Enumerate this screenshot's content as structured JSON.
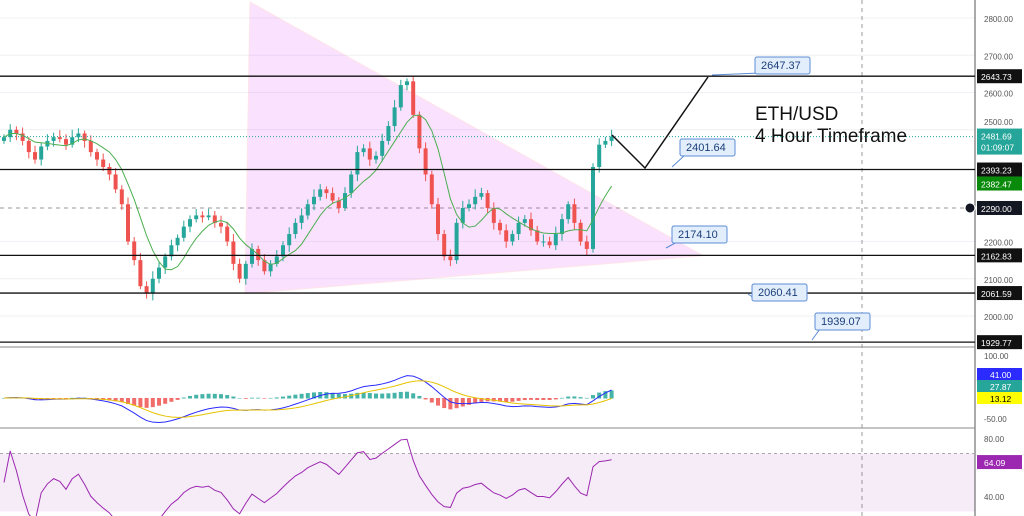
{
  "chart_data": {
    "type": "candlestick",
    "title": "ETH/USD",
    "subtitle": "4 Hour Timeframe",
    "ylim": [
      1920,
      2850
    ],
    "y_ticks": [
      2800,
      2700,
      2600,
      2500,
      2200,
      2100,
      2000
    ],
    "closes": [
      2480,
      2500,
      2490,
      2470,
      2440,
      2420,
      2455,
      2470,
      2480,
      2475,
      2460,
      2480,
      2490,
      2470,
      2440,
      2420,
      2400,
      2380,
      2340,
      2300,
      2200,
      2150,
      2080,
      2060,
      2100,
      2130,
      2160,
      2190,
      2210,
      2240,
      2260,
      2270,
      2265,
      2270,
      2250,
      2240,
      2200,
      2140,
      2100,
      2140,
      2180,
      2150,
      2120,
      2140,
      2160,
      2190,
      2220,
      2250,
      2270,
      2300,
      2320,
      2340,
      2330,
      2310,
      2290,
      2330,
      2380,
      2440,
      2450,
      2420,
      2430,
      2470,
      2510,
      2560,
      2620,
      2630,
      2540,
      2450,
      2380,
      2300,
      2220,
      2160,
      2150,
      2250,
      2290,
      2300,
      2320,
      2330,
      2290,
      2250,
      2230,
      2200,
      2220,
      2250,
      2260,
      2230,
      2200,
      2200,
      2190,
      2220,
      2260,
      2300,
      2250,
      2200,
      2180,
      2400,
      2460,
      2470,
      2482
    ],
    "price_lines": [
      2643.73,
      2393.23,
      2162.83,
      2061.59,
      1929.77
    ],
    "callouts": [
      "2647.37",
      "2401.64",
      "2174.10",
      "2060.41",
      "1939.07"
    ],
    "current_price": "2481.69",
    "countdown": "01:09:07",
    "ma_value": "2382.47",
    "crosshair_price": "2290.00",
    "macd": {
      "ticks": [
        "100.00",
        "-50.00"
      ],
      "values": [
        "41.00",
        "27.87",
        "13.12"
      ],
      "colors": [
        "#2b2bff",
        "#26a69a",
        "#ffff00"
      ]
    },
    "rsi": {
      "ticks": [
        "80.00",
        "40.00"
      ],
      "value": "64.09",
      "color": "#9c27b0"
    },
    "colors": {
      "up": "#26a69a",
      "down": "#ef5350",
      "triangle": "#e040fb",
      "ma": "#4caf50"
    }
  }
}
